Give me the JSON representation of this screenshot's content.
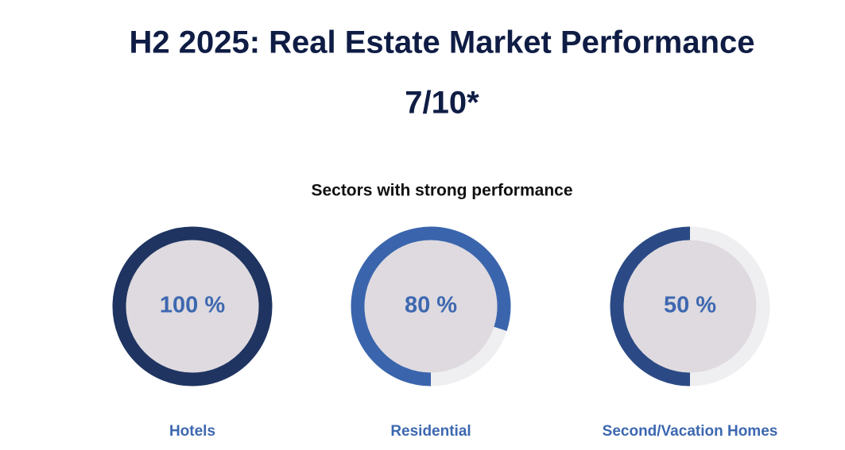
{
  "title": "H2 2025: Real Estate Market Performance",
  "score": "7/10*",
  "chart_data": {
    "type": "gauge",
    "title": "Sectors with strong performance",
    "categories": [
      "Hotels",
      "Residential",
      "Second/Vacation Homes"
    ],
    "values": [
      100,
      80,
      50
    ],
    "value_labels": [
      "100 %",
      "80 %",
      "50 %"
    ],
    "colors": [
      "#1f3461",
      "#3a65ad",
      "#2b4a85"
    ]
  }
}
